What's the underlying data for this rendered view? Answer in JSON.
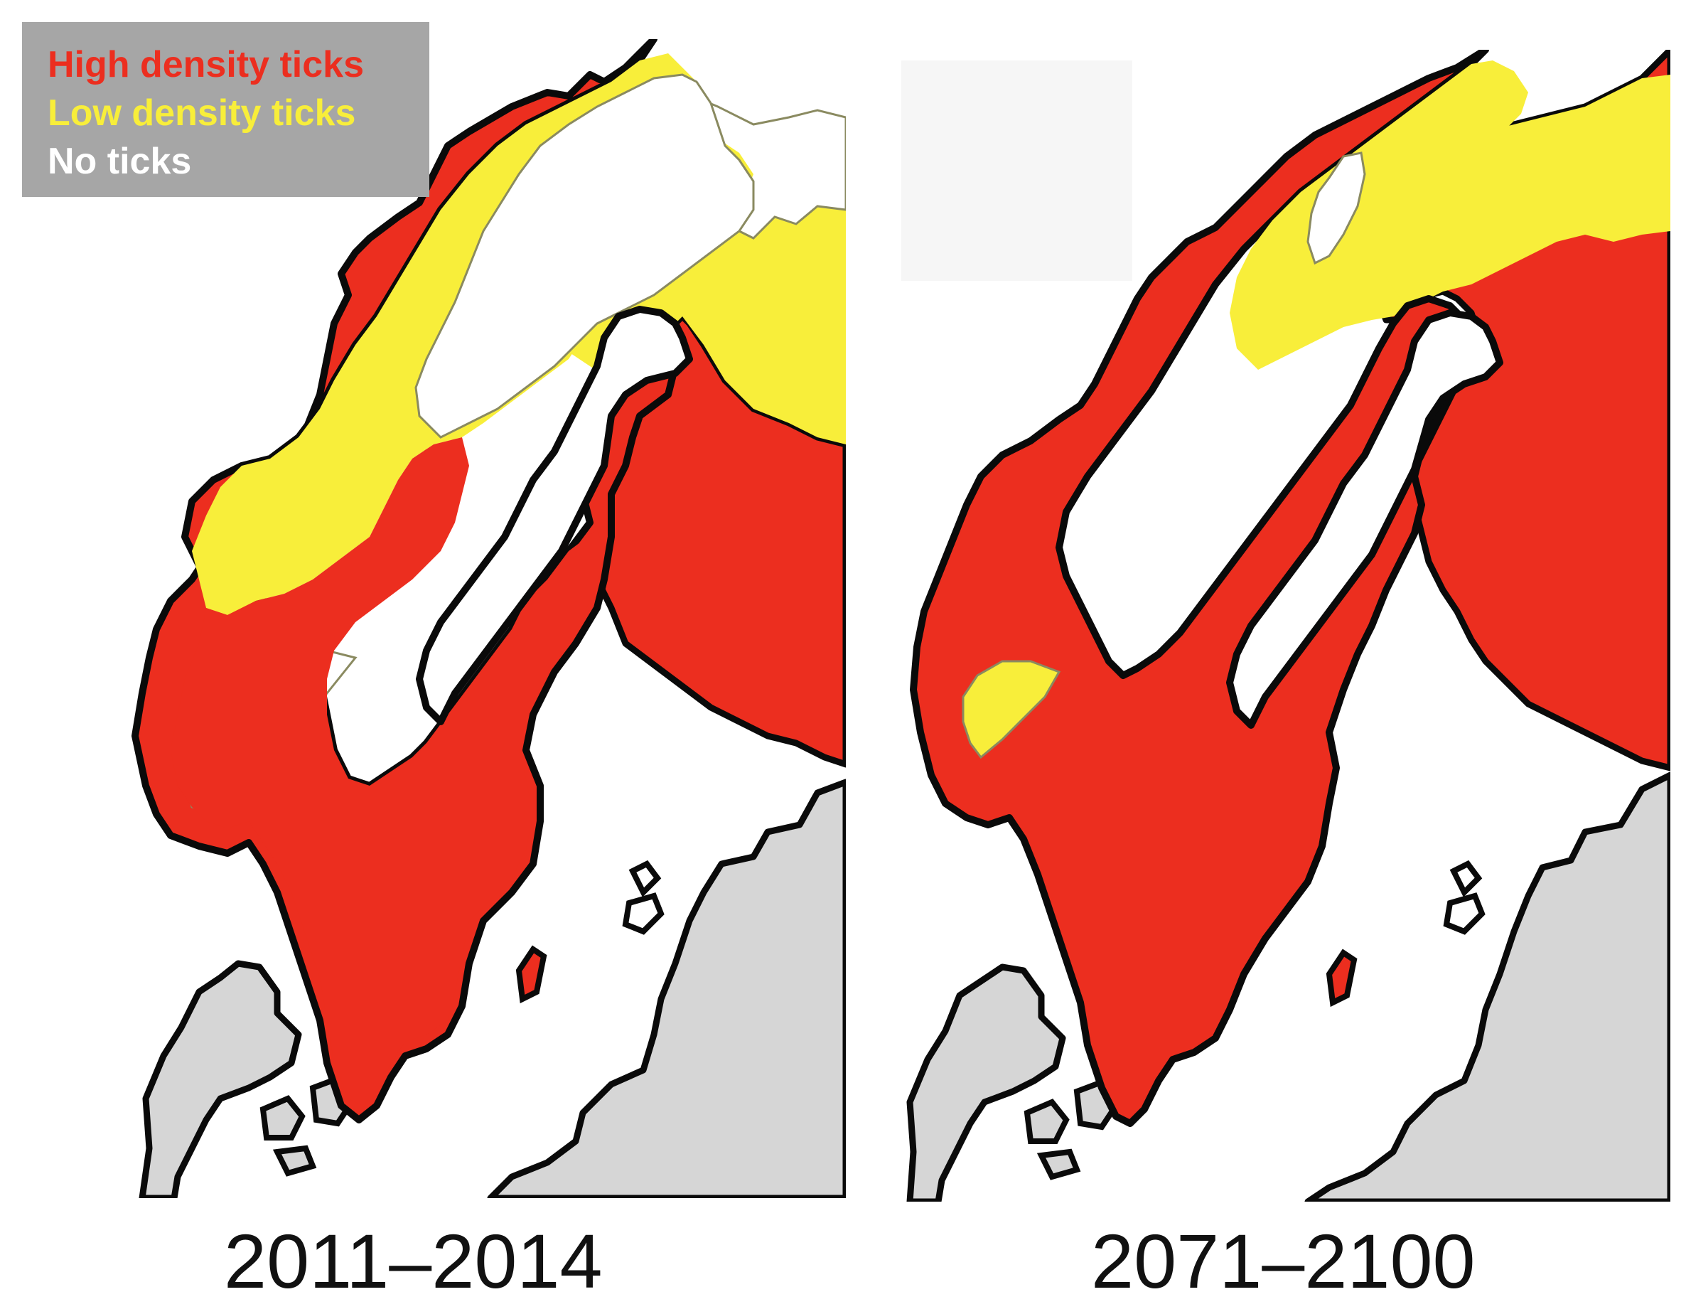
{
  "legend": {
    "items": [
      {
        "label": "High density ticks",
        "color": "#ec2e1f"
      },
      {
        "label": "Low density ticks",
        "color": "#f8ee3a"
      },
      {
        "label": "No ticks",
        "color": "#ffffff"
      }
    ],
    "background": "#a6a6a6"
  },
  "colors": {
    "high": "#ec2e1f",
    "low": "#f8ee3a",
    "none": "#ffffff",
    "other_land": "#d6d6d6",
    "coastline": "#0a0a0a",
    "contour": "#8a8a60"
  },
  "maps": [
    {
      "period": "2011–2014"
    },
    {
      "period": "2071–2100"
    }
  ]
}
